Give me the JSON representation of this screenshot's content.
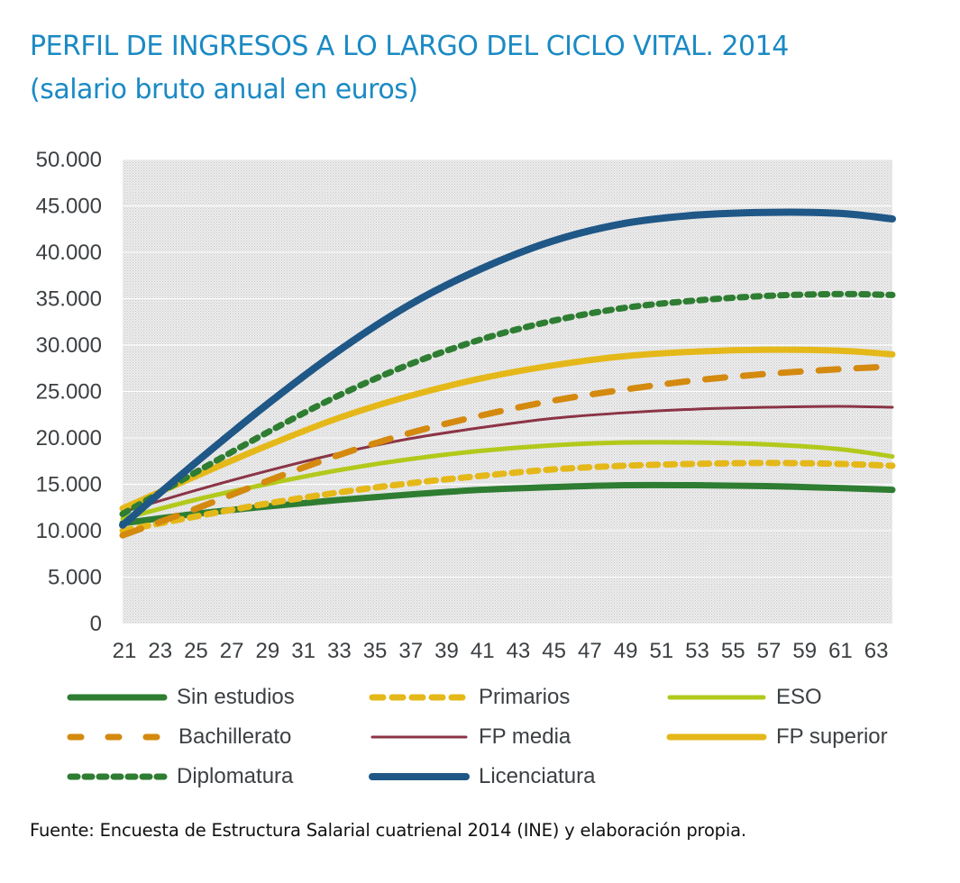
{
  "title": {
    "line1": "PERFIL DE INGRESOS A LO LARGO DEL CICLO VITAL. 2014",
    "line2": "(salario bruto anual en euros)"
  },
  "source": "Fuente: Encuesta de Estructura Salarial cuatrienal 2014 (INE) y elaboración propia.",
  "chart_data": {
    "type": "line",
    "title": "PERFIL DE INGRESOS A LO LARGO DEL CICLO VITAL. 2014 (salario bruto anual en euros)",
    "xlabel": "",
    "ylabel": "",
    "xlim": [
      21,
      64
    ],
    "ylim": [
      0,
      50000
    ],
    "y_ticks": [
      0,
      5000,
      10000,
      15000,
      20000,
      25000,
      30000,
      35000,
      40000,
      45000,
      50000
    ],
    "y_tick_labels": [
      "0",
      "5.000",
      "10.000",
      "15.000",
      "20.000",
      "25.000",
      "30.000",
      "35.000",
      "40.000",
      "45.000",
      "50.000"
    ],
    "x_ticks": [
      21,
      23,
      25,
      27,
      29,
      31,
      33,
      35,
      37,
      39,
      41,
      43,
      45,
      47,
      49,
      51,
      53,
      55,
      57,
      59,
      61,
      63
    ],
    "x_tick_labels": [
      "21",
      "23",
      "25",
      "27",
      "29",
      "31",
      "33",
      "35",
      "37",
      "39",
      "41",
      "43",
      "45",
      "47",
      "49",
      "51",
      "53",
      "55",
      "57",
      "59",
      "61",
      "63"
    ],
    "grid": true,
    "legend_position": "bottom",
    "x": [
      21,
      25,
      29,
      33,
      37,
      41,
      45,
      49,
      53,
      57,
      61,
      64
    ],
    "series": [
      {
        "name": "Sin estudios",
        "color": "#2e7d32",
        "style": "solid",
        "weight": "thick",
        "values": [
          10800,
          11800,
          12600,
          13300,
          13900,
          14400,
          14700,
          14900,
          14900,
          14800,
          14600,
          14400
        ]
      },
      {
        "name": "Primarios",
        "color": "#e5b819",
        "style": "dash",
        "weight": "thick",
        "values": [
          10000,
          11500,
          12900,
          14100,
          15100,
          15900,
          16600,
          17000,
          17200,
          17300,
          17200,
          17000
        ]
      },
      {
        "name": "ESO",
        "color": "#b2c91b",
        "style": "solid",
        "weight": "medium",
        "values": [
          11300,
          13300,
          15000,
          16500,
          17700,
          18600,
          19200,
          19500,
          19500,
          19300,
          18800,
          18000
        ]
      },
      {
        "name": "Bachillerato",
        "color": "#d4890f",
        "style": "longdash",
        "weight": "thick",
        "values": [
          9500,
          12300,
          15300,
          18100,
          20500,
          22400,
          24000,
          25200,
          26200,
          26900,
          27400,
          27700
        ]
      },
      {
        "name": "FP media",
        "color": "#8b3446",
        "style": "solid",
        "weight": "thin",
        "values": [
          12000,
          14300,
          16400,
          18300,
          19900,
          21100,
          22100,
          22700,
          23100,
          23300,
          23400,
          23300
        ]
      },
      {
        "name": "FP superior",
        "color": "#e5b819",
        "style": "solid",
        "weight": "thick",
        "values": [
          12400,
          15800,
          19100,
          22100,
          24500,
          26400,
          27800,
          28800,
          29300,
          29500,
          29400,
          29000
        ]
      },
      {
        "name": "Diplomatura",
        "color": "#2e7d32",
        "style": "dot",
        "weight": "thick",
        "values": [
          11800,
          16200,
          20500,
          24500,
          27900,
          30600,
          32600,
          34000,
          34800,
          35300,
          35500,
          35400
        ]
      },
      {
        "name": "Licenciatura",
        "color": "#1f5787",
        "style": "solid",
        "weight": "xthick",
        "values": [
          10600,
          17200,
          23500,
          29300,
          34300,
          38200,
          41200,
          43100,
          44000,
          44300,
          44200,
          43600
        ]
      }
    ]
  }
}
